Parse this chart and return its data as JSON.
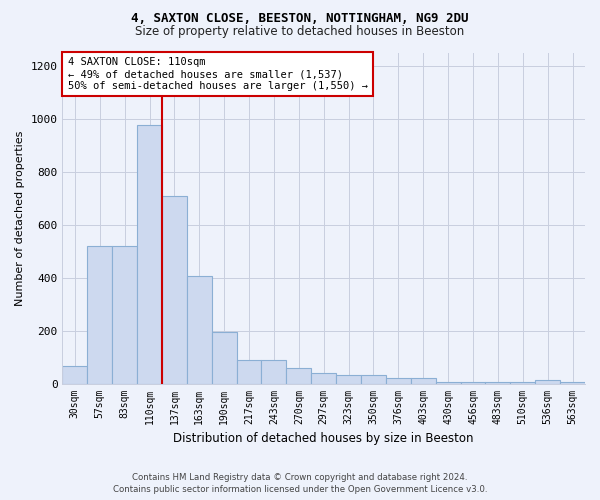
{
  "title_line1": "4, SAXTON CLOSE, BEESTON, NOTTINGHAM, NG9 2DU",
  "title_line2": "Size of property relative to detached houses in Beeston",
  "xlabel": "Distribution of detached houses by size in Beeston",
  "ylabel": "Number of detached properties",
  "categories": [
    "30sqm",
    "57sqm",
    "83sqm",
    "110sqm",
    "137sqm",
    "163sqm",
    "190sqm",
    "217sqm",
    "243sqm",
    "270sqm",
    "297sqm",
    "323sqm",
    "350sqm",
    "376sqm",
    "403sqm",
    "430sqm",
    "456sqm",
    "483sqm",
    "510sqm",
    "536sqm",
    "563sqm"
  ],
  "values": [
    65,
    520,
    520,
    975,
    710,
    405,
    195,
    90,
    90,
    58,
    40,
    32,
    32,
    20,
    20,
    5,
    5,
    5,
    5,
    12,
    5
  ],
  "bar_color": "#cdd9ef",
  "bar_edge_color": "#8bafd4",
  "highlight_index": 3,
  "highlight_color": "#cc0000",
  "ylim": [
    0,
    1250
  ],
  "yticks": [
    0,
    200,
    400,
    600,
    800,
    1000,
    1200
  ],
  "annotation_text": "4 SAXTON CLOSE: 110sqm\n← 49% of detached houses are smaller (1,537)\n50% of semi-detached houses are larger (1,550) →",
  "footer_line1": "Contains HM Land Registry data © Crown copyright and database right 2024.",
  "footer_line2": "Contains public sector information licensed under the Open Government Licence v3.0.",
  "background_color": "#eef2fb",
  "plot_background_color": "#eef2fb",
  "grid_color": "#c8cedf"
}
